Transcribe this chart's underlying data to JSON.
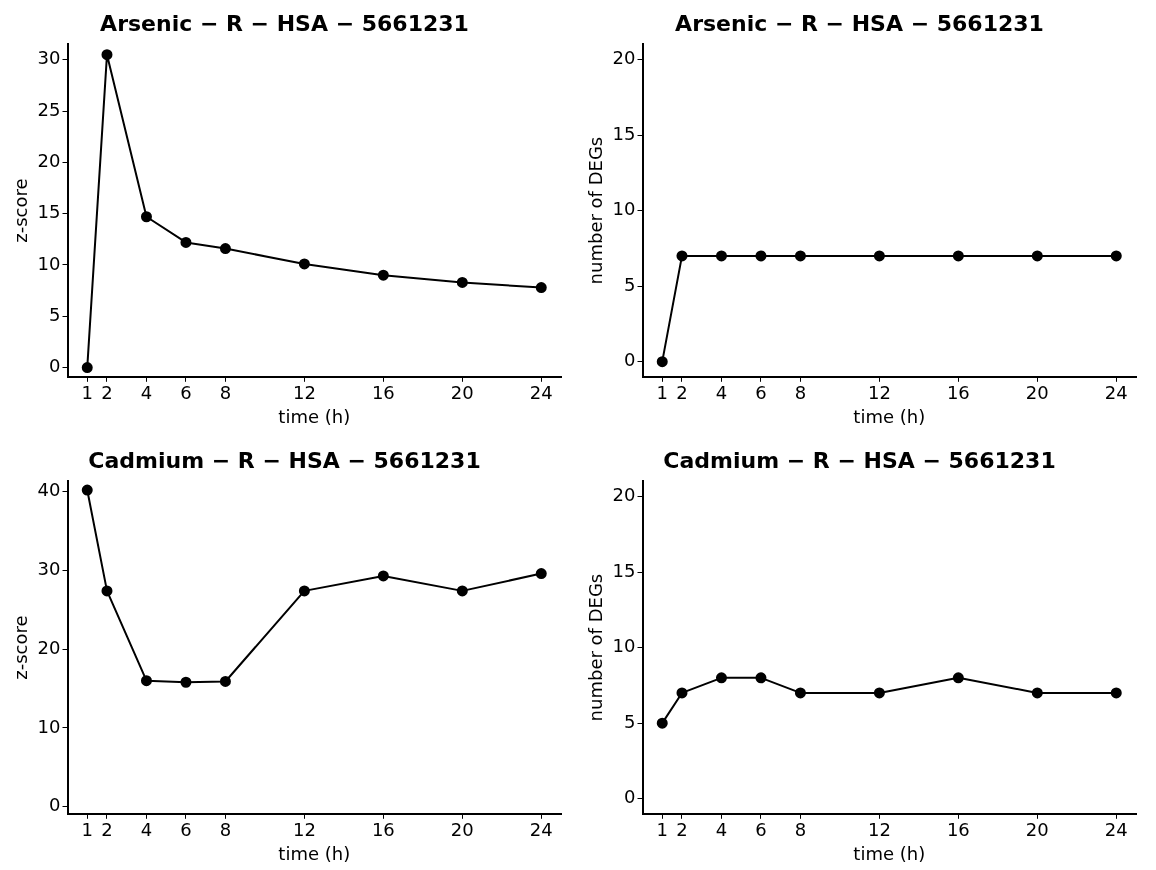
{
  "chart_data": [
    {
      "type": "line",
      "title": "Arsenic − R − HSA − 5661231",
      "xlabel": "time (h)",
      "ylabel": "z-score",
      "x": [
        1,
        2,
        4,
        6,
        8,
        12,
        16,
        20,
        24
      ],
      "xlim": [
        0,
        25
      ],
      "xticks": [
        1,
        2,
        4,
        6,
        8,
        12,
        16,
        20,
        24
      ],
      "ylim": [
        -0.9,
        31.5
      ],
      "yticks": [
        0,
        5,
        10,
        15,
        20,
        25,
        30
      ],
      "marker": "circle",
      "line_style": "solid",
      "series": [
        {
          "color": "#000000",
          "values": [
            0,
            30.5,
            14.7,
            12.2,
            11.6,
            10.1,
            9.0,
            8.3,
            7.8
          ]
        }
      ]
    },
    {
      "type": "line",
      "title": "Arsenic − R − HSA − 5661231",
      "xlabel": "time (h)",
      "ylabel": "number of DEGs",
      "x": [
        1,
        2,
        4,
        6,
        8,
        12,
        16,
        20,
        24
      ],
      "xlim": [
        0,
        25
      ],
      "xticks": [
        1,
        2,
        4,
        6,
        8,
        12,
        16,
        20,
        24
      ],
      "ylim": [
        -1,
        21
      ],
      "yticks": [
        0,
        5,
        10,
        15,
        20
      ],
      "marker": "circle",
      "line_style": "solid",
      "series": [
        {
          "color": "#000000",
          "values": [
            0,
            7,
            7,
            7,
            7,
            7,
            7,
            7,
            7
          ]
        }
      ]
    },
    {
      "type": "line",
      "title": "Cadmium − R − HSA − 5661231",
      "xlabel": "time (h)",
      "ylabel": "z-score",
      "x": [
        1,
        2,
        4,
        6,
        8,
        12,
        16,
        20,
        24
      ],
      "xlim": [
        0,
        25
      ],
      "xticks": [
        1,
        2,
        4,
        6,
        8,
        12,
        16,
        20,
        24
      ],
      "ylim": [
        -0.9,
        41.3
      ],
      "yticks": [
        0,
        10,
        20,
        30,
        40
      ],
      "marker": "circle",
      "line_style": "solid",
      "series": [
        {
          "color": "#000000",
          "values": [
            40.2,
            27.4,
            16.0,
            15.8,
            15.9,
            27.4,
            29.3,
            27.4,
            29.6
          ]
        }
      ]
    },
    {
      "type": "line",
      "title": "Cadmium − R − HSA − 5661231",
      "xlabel": "time (h)",
      "ylabel": "number of DEGs",
      "x": [
        1,
        2,
        4,
        6,
        8,
        12,
        16,
        20,
        24
      ],
      "xlim": [
        0,
        25
      ],
      "xticks": [
        1,
        2,
        4,
        6,
        8,
        12,
        16,
        20,
        24
      ],
      "ylim": [
        -1,
        21
      ],
      "yticks": [
        0,
        5,
        10,
        15,
        20
      ],
      "marker": "circle",
      "line_style": "solid",
      "series": [
        {
          "color": "#000000",
          "values": [
            5,
            7,
            8,
            8,
            7,
            7,
            8,
            7,
            7
          ]
        }
      ]
    }
  ]
}
